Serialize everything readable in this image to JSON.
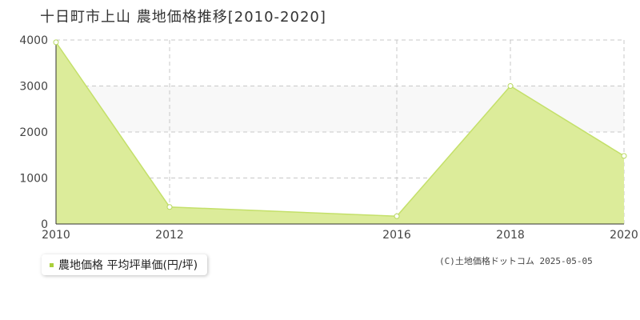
{
  "title": "十日町市上山 農地価格推移[2010-2020]",
  "legend_label": "農地価格 平均坪単価(円/坪)",
  "copyright": "(C)土地価格ドットコム 2025-05-05",
  "colors": {
    "area_fill": "#dcec9a",
    "line": "#c4e06a",
    "marker_fill": "#ffffff",
    "marker_stroke": "#b8d860",
    "legend_marker": "#a9cf3a",
    "grid": "#c8c8c8",
    "band": "#f8f8f8"
  },
  "chart_data": {
    "type": "area",
    "x": [
      2010,
      2012,
      2016,
      2018,
      2020
    ],
    "series": [
      {
        "name": "農地価格 平均坪単価(円/坪)",
        "values": [
          3950,
          370,
          170,
          3000,
          1480
        ]
      }
    ],
    "x_ticks": [
      "2010",
      "2012",
      "2016",
      "2018",
      "2020"
    ],
    "y_ticks": [
      "0",
      "1000",
      "2000",
      "3000",
      "4000"
    ],
    "ylim": [
      0,
      4000
    ],
    "grid": true,
    "legend_position": "bottom-left"
  }
}
